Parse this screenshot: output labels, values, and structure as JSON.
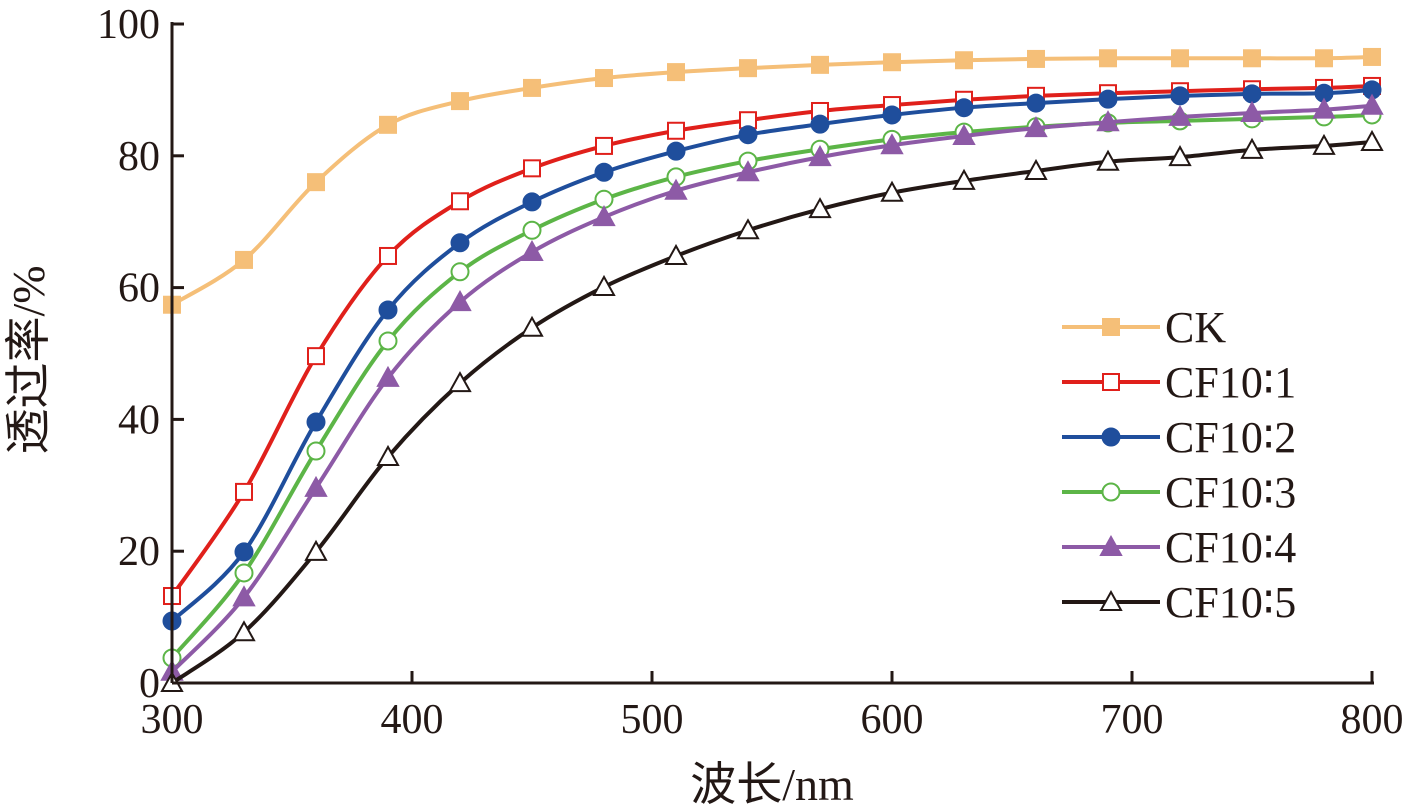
{
  "chart_data": {
    "type": "line",
    "title": "",
    "xlabel": "波长/nm",
    "ylabel": "透过率/%",
    "xlim": [
      300,
      800
    ],
    "ylim": [
      0,
      100
    ],
    "xticks": [
      300,
      400,
      500,
      600,
      700,
      800
    ],
    "yticks": [
      0,
      20,
      40,
      60,
      80,
      100
    ],
    "grid": false,
    "legend_position": "right",
    "x": [
      300,
      330,
      360,
      390,
      420,
      450,
      480,
      510,
      540,
      570,
      600,
      630,
      660,
      690,
      720,
      750,
      780,
      800
    ],
    "series": [
      {
        "name": "CK",
        "color": "#f5bf78",
        "marker": "square-filled",
        "values": [
          57.4,
          64.2,
          76.0,
          84.7,
          88.3,
          90.3,
          91.8,
          92.7,
          93.3,
          93.8,
          94.2,
          94.5,
          94.7,
          94.8,
          94.8,
          94.8,
          94.8,
          95.0
        ]
      },
      {
        "name": "CF10∶1",
        "color": "#e0201b",
        "marker": "square-open",
        "values": [
          13.2,
          29.0,
          49.6,
          64.8,
          73.1,
          78.1,
          81.5,
          83.8,
          85.4,
          86.8,
          87.7,
          88.5,
          89.1,
          89.5,
          89.8,
          90.1,
          90.3,
          90.6
        ]
      },
      {
        "name": "CF10∶2",
        "color": "#1f4e9c",
        "marker": "circle-filled",
        "values": [
          9.4,
          19.9,
          39.6,
          56.6,
          66.8,
          73.0,
          77.5,
          80.7,
          83.2,
          84.8,
          86.2,
          87.3,
          88.0,
          88.6,
          89.1,
          89.4,
          89.5,
          90.0
        ]
      },
      {
        "name": "CF10∶3",
        "color": "#5cb547",
        "marker": "circle-open",
        "values": [
          3.8,
          16.7,
          35.2,
          51.9,
          62.4,
          68.7,
          73.4,
          76.8,
          79.2,
          81.0,
          82.5,
          83.6,
          84.4,
          85.0,
          85.3,
          85.6,
          85.9,
          86.2
        ]
      },
      {
        "name": "CF10∶4",
        "color": "#8d5aa6",
        "marker": "triangle-filled",
        "values": [
          1.7,
          13.0,
          29.6,
          46.3,
          57.8,
          65.4,
          70.7,
          74.7,
          77.5,
          79.8,
          81.6,
          83.0,
          84.2,
          85.1,
          85.9,
          86.5,
          87.0,
          87.6
        ]
      },
      {
        "name": "CF10∶5",
        "color": "#231815",
        "marker": "triangle-open",
        "values": [
          0.0,
          7.7,
          19.9,
          34.3,
          45.5,
          53.9,
          60.1,
          64.8,
          68.7,
          71.9,
          74.4,
          76.2,
          77.7,
          79.1,
          79.8,
          80.9,
          81.5,
          82.1
        ]
      }
    ]
  }
}
